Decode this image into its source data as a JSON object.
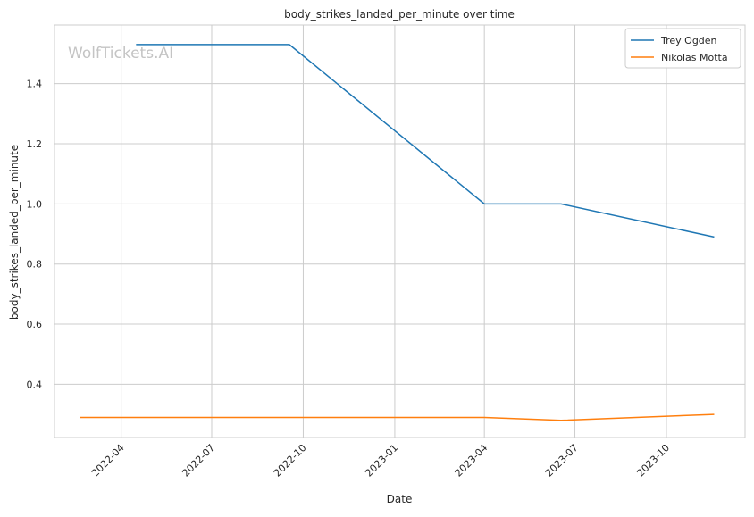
{
  "chart_data": {
    "type": "line",
    "title": "body_strikes_landed_per_minute over time",
    "xlabel": "Date",
    "ylabel": "body_strikes_landed_per_minute",
    "watermark": "WolfTickets.AI",
    "x_ticks": [
      "2022-04",
      "2022-07",
      "2022-10",
      "2023-01",
      "2023-04",
      "2023-07",
      "2023-10"
    ],
    "y_ticks": [
      "0.4",
      "0.6",
      "0.8",
      "1.0",
      "1.2",
      "1.4"
    ],
    "xlim": [
      "2022-01-24",
      "2023-12-19"
    ],
    "ylim": [
      0.223,
      1.595
    ],
    "grid": true,
    "legend_position": "top-right",
    "series": [
      {
        "name": "Trey Ogden",
        "color": "#1f77b4",
        "x": [
          "2022-04-16",
          "2022-09-17",
          "2023-04-01",
          "2023-06-17",
          "2023-11-18"
        ],
        "y": [
          1.53,
          1.53,
          1.0,
          1.0,
          0.89
        ]
      },
      {
        "name": "Nikolas Motta",
        "color": "#ff7f0e",
        "x": [
          "2022-02-19",
          "2022-04-16",
          "2022-09-17",
          "2023-04-01",
          "2023-06-17",
          "2023-11-18"
        ],
        "y": [
          0.29,
          0.29,
          0.29,
          0.29,
          0.28,
          0.3
        ]
      }
    ]
  }
}
